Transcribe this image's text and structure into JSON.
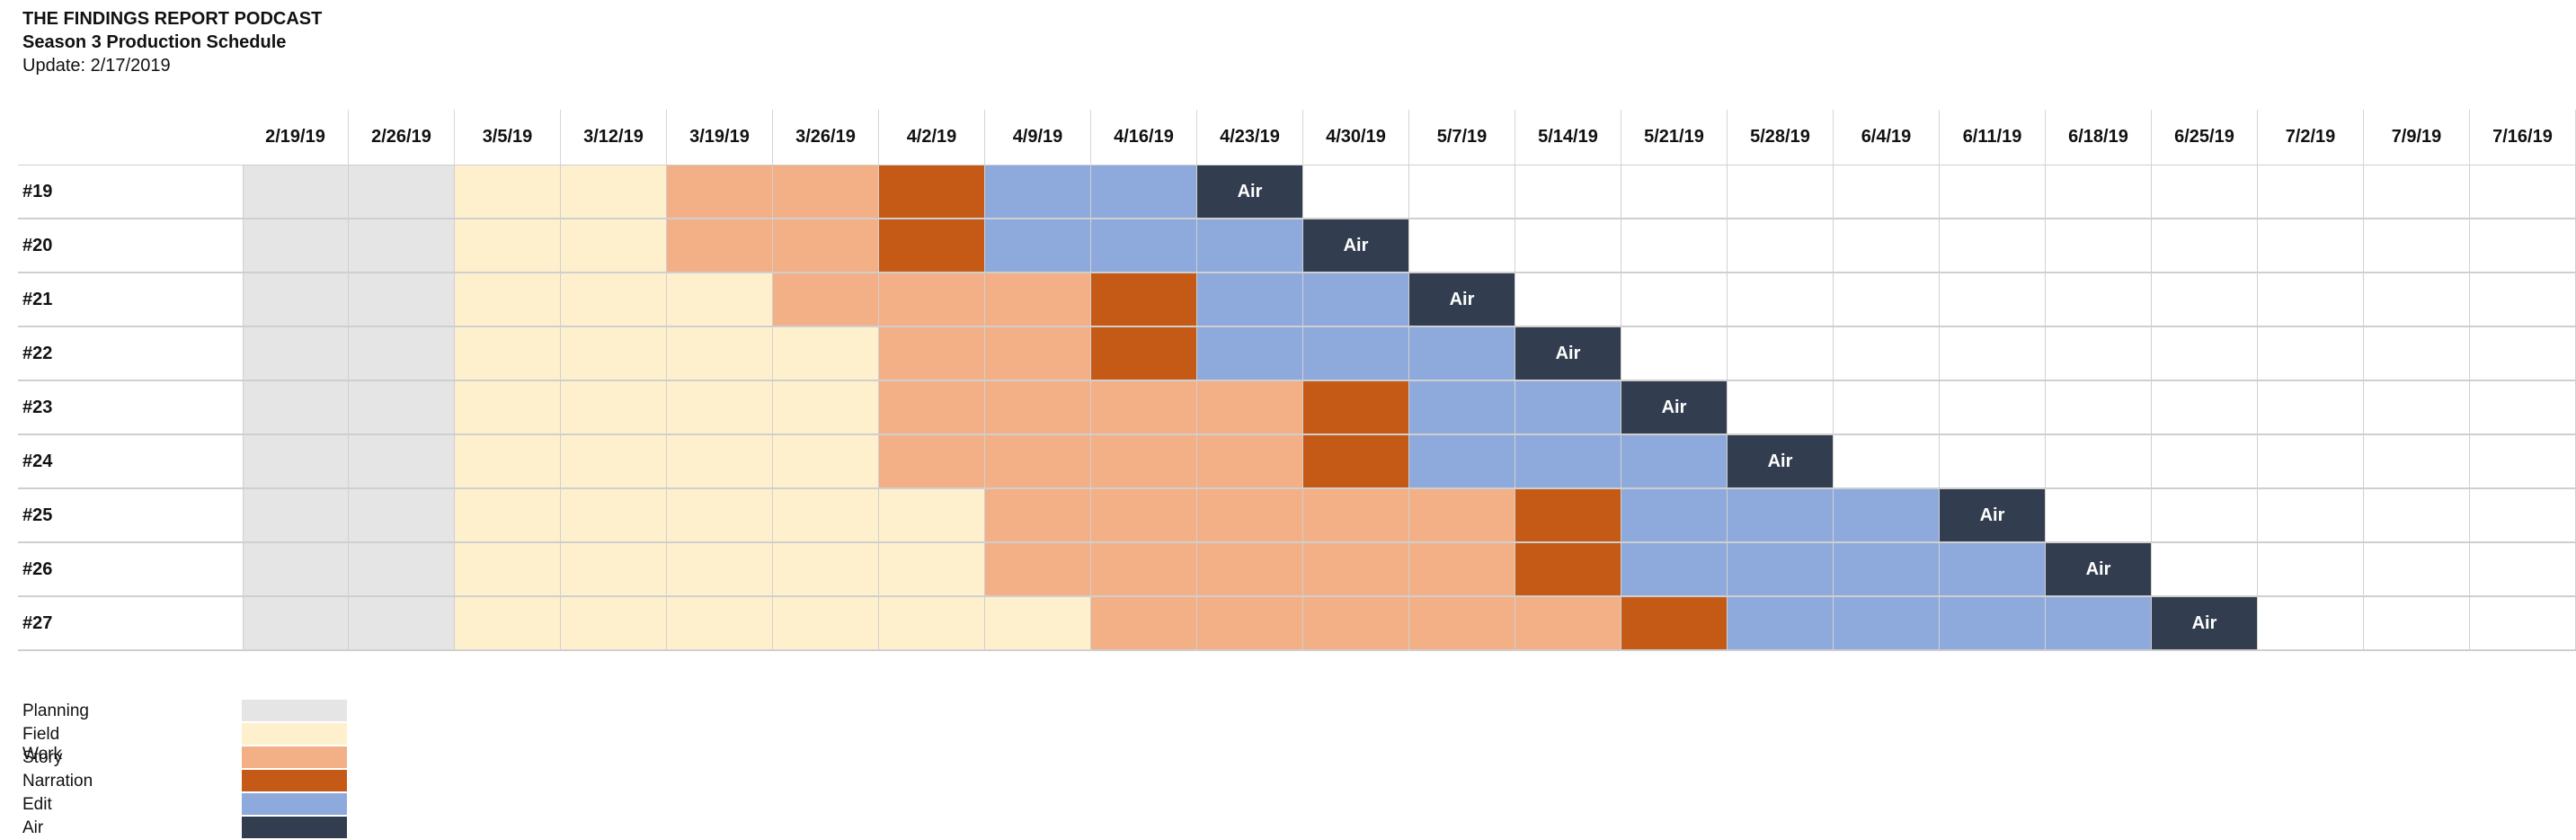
{
  "header": {
    "title": "THE FINDINGS REPORT PODCAST",
    "subtitle": "Season 3 Production Schedule",
    "update": "Update: 2/17/2019"
  },
  "dates": [
    "2/19/19",
    "2/26/19",
    "3/5/19",
    "3/12/19",
    "3/19/19",
    "3/26/19",
    "4/2/19",
    "4/9/19",
    "4/16/19",
    "4/23/19",
    "4/30/19",
    "5/7/19",
    "5/14/19",
    "5/21/19",
    "5/28/19",
    "6/4/19",
    "6/11/19",
    "6/18/19",
    "6/25/19",
    "7/2/19",
    "7/9/19",
    "7/16/19"
  ],
  "stages": {
    "planning": {
      "label": "Planning",
      "color": "#e5e5e5"
    },
    "fieldwork": {
      "label": "Field Work",
      "color": "#fff0cd"
    },
    "story": {
      "label": "Story",
      "color": "#f3af86"
    },
    "narration": {
      "label": "Narration",
      "color": "#c55a16"
    },
    "edit": {
      "label": "Edit",
      "color": "#8eaadc"
    },
    "air": {
      "label": "Air",
      "color": "#323e4f"
    }
  },
  "air_text": "Air",
  "episodes": [
    {
      "label": "#19",
      "phases": {
        "planning": 2,
        "fieldwork": 2,
        "story": 2,
        "narration": 1,
        "edit": 2
      }
    },
    {
      "label": "#20",
      "phases": {
        "planning": 2,
        "fieldwork": 2,
        "story": 2,
        "narration": 1,
        "edit": 3
      }
    },
    {
      "label": "#21",
      "phases": {
        "planning": 2,
        "fieldwork": 3,
        "story": 3,
        "narration": 1,
        "edit": 2
      }
    },
    {
      "label": "#22",
      "phases": {
        "planning": 2,
        "fieldwork": 4,
        "story": 2,
        "narration": 1,
        "edit": 3
      }
    },
    {
      "label": "#23",
      "phases": {
        "planning": 2,
        "fieldwork": 4,
        "story": 4,
        "narration": 1,
        "edit": 2
      }
    },
    {
      "label": "#24",
      "phases": {
        "planning": 2,
        "fieldwork": 4,
        "story": 4,
        "narration": 1,
        "edit": 3
      }
    },
    {
      "label": "#25",
      "phases": {
        "planning": 2,
        "fieldwork": 5,
        "story": 5,
        "narration": 1,
        "edit": 3
      }
    },
    {
      "label": "#26",
      "phases": {
        "planning": 2,
        "fieldwork": 5,
        "story": 5,
        "narration": 1,
        "edit": 4
      }
    },
    {
      "label": "#27",
      "phases": {
        "planning": 2,
        "fieldwork": 6,
        "story": 5,
        "narration": 1,
        "edit": 4
      }
    }
  ],
  "legend": [
    "planning",
    "fieldwork",
    "story",
    "narration",
    "edit",
    "air"
  ]
}
